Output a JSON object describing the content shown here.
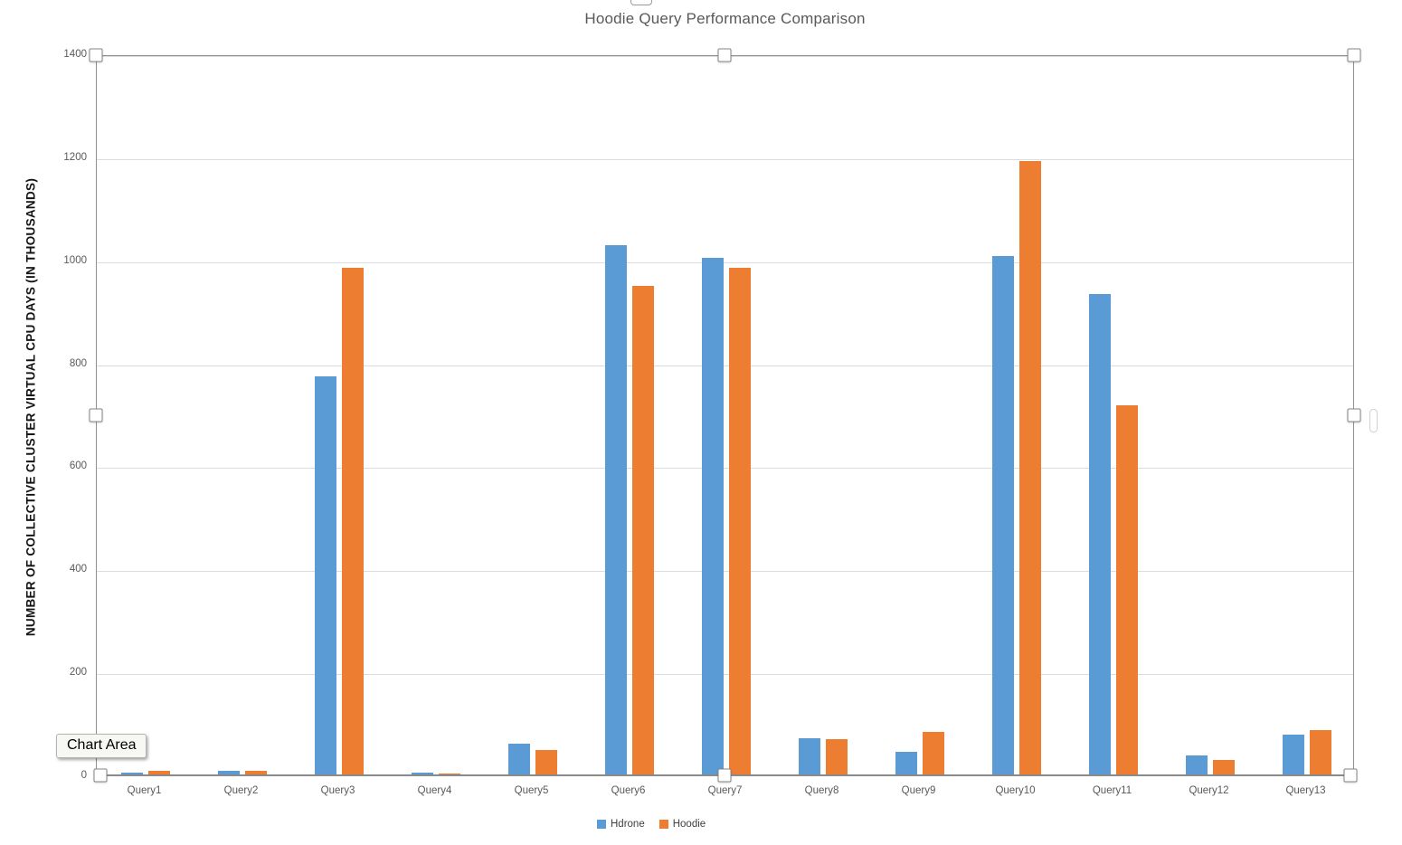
{
  "title": "Hoodie Query Performance Comparison",
  "tooltip": {
    "label": "Chart Area"
  },
  "colors": {
    "series_blue": "#5B9BD5",
    "series_orange": "#ED7D31",
    "gridline": "#DCDCDC",
    "axis_text": "#595959",
    "title_text": "#595959"
  },
  "chart_data": {
    "type": "bar",
    "title": "Hoodie Query Performance Comparison",
    "xlabel": "",
    "ylabel": "NUMBER OF COLLECTIVE CLUSTER VIRTUAL CPU DAYS (IN THOUSANDS)",
    "categories": [
      "Query1",
      "Query2",
      "Query3",
      "Query4",
      "Query5",
      "Query6",
      "Query7",
      "Query8",
      "Query9",
      "Query10",
      "Query11",
      "Query12",
      "Query13"
    ],
    "series": [
      {
        "name": "Hdrone",
        "color": "#5B9BD5",
        "values": [
          5,
          9,
          775,
          5,
          62,
          1030,
          1005,
          72,
          46,
          1008,
          935,
          39,
          79
        ]
      },
      {
        "name": "Hoodie",
        "color": "#ED7D31",
        "values": [
          9,
          8,
          985,
          4,
          50,
          950,
          985,
          71,
          84,
          1193,
          718,
          30,
          88
        ]
      }
    ],
    "ylim": [
      0,
      1400
    ],
    "yticks": [
      0,
      200,
      400,
      600,
      800,
      1000,
      1200,
      1400
    ],
    "grid": true,
    "legend_position": "bottom"
  }
}
